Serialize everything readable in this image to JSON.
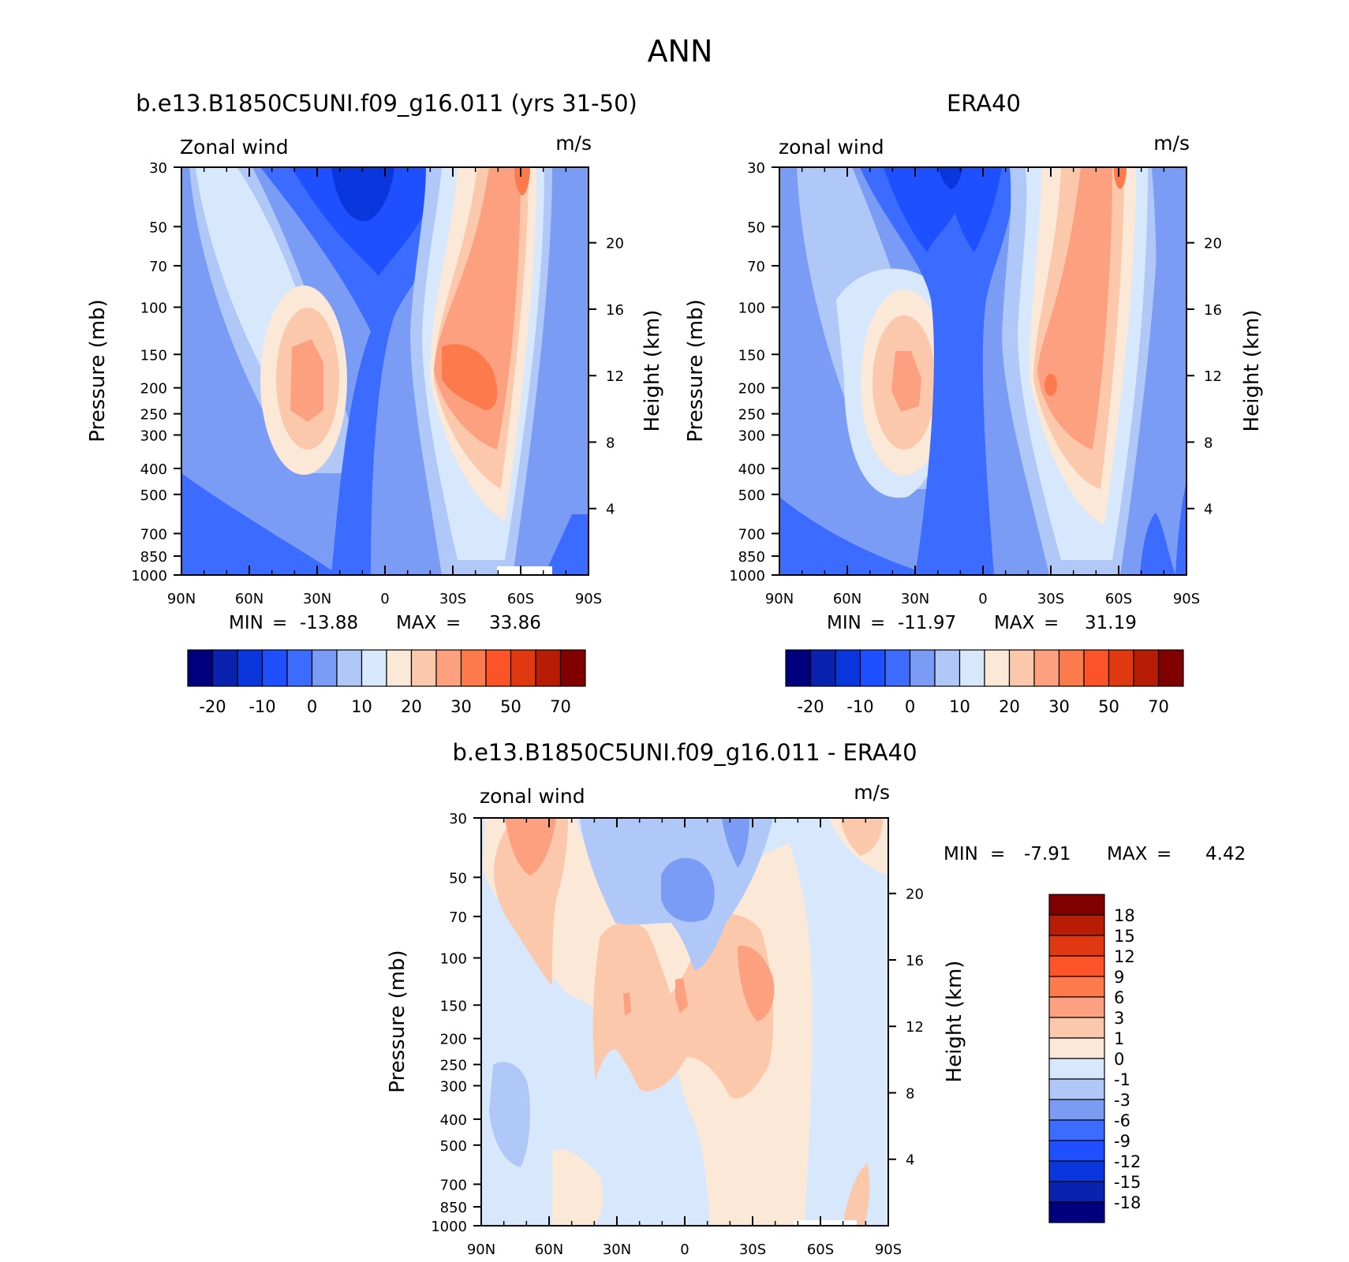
{
  "figure": {
    "title": "ANN",
    "panels": [
      {
        "title": "b.e13.B1850C5UNI.f09_g16.011 (yrs 31-50)",
        "left_label": "Zonal wind",
        "right_label": "m/s",
        "y_title": "Pressure (mb)",
        "y2_title": "Height (km)",
        "min_label": "MIN",
        "min_value": "-13.88",
        "max_label": "MAX",
        "max_value": "33.86"
      },
      {
        "title": "ERA40",
        "left_label": "zonal wind",
        "right_label": "m/s",
        "y_title": "Pressure (mb)",
        "y2_title": "Height (km)",
        "min_label": "MIN",
        "min_value": "-11.97",
        "max_label": "MAX",
        "max_value": "31.19"
      },
      {
        "title": "b.e13.B1850C5UNI.f09_g16.011 - ERA40",
        "left_label": "zonal wind",
        "right_label": "m/s",
        "y_title": "Pressure (mb)",
        "y2_title": "Height (km)",
        "min_label": "MIN",
        "min_value": "-7.91",
        "max_label": "MAX",
        "max_value": "4.42"
      }
    ]
  },
  "chart_data": [
    {
      "type": "heatmap",
      "subtype": "filled-contour latitude-pressure cross-section",
      "title": "b.e13.B1850C5UNI.f09_g16.011 (yrs 31-50)",
      "variable": "Zonal wind",
      "units": "m/s",
      "x_ticks": [
        "90N",
        "60N",
        "30N",
        "0",
        "30S",
        "60S",
        "90S"
      ],
      "y_ticks": [
        30,
        50,
        70,
        100,
        150,
        200,
        250,
        300,
        400,
        500,
        700,
        850,
        1000
      ],
      "y2_ticks": [
        20,
        16,
        12,
        8,
        4
      ],
      "y_scale": "log",
      "ylim": [
        1000,
        30
      ],
      "xlim": [
        90,
        -90
      ],
      "min": -13.88,
      "max": 33.86,
      "colorbar": {
        "orientation": "horizontal",
        "labels": [
          "-20",
          "-10",
          "0",
          "10",
          "20",
          "30",
          "50",
          "70"
        ],
        "colors": [
          "#00007f",
          "#0a22b0",
          "#0a36de",
          "#1e50ff",
          "#3c6cff",
          "#7a9cf5",
          "#b0c8f8",
          "#d8e8fc",
          "#fce8d6",
          "#fcc8ac",
          "#fca080",
          "#fc7a4c",
          "#fc5428",
          "#e03810",
          "#b81c04",
          "#800000"
        ]
      },
      "features": {
        "westerly_jet_NH_core_lat": 35,
        "westerly_jet_NH_core_p": 200,
        "westerly_jet_SH_core_lat": -45,
        "westerly_jet_SH_core_p": 200,
        "stratospheric_jet_SH_lat": -60,
        "tropical_easterlies_lat": 0
      }
    },
    {
      "type": "heatmap",
      "subtype": "filled-contour latitude-pressure cross-section",
      "title": "ERA40",
      "variable": "zonal wind",
      "units": "m/s",
      "x_ticks": [
        "90N",
        "60N",
        "30N",
        "0",
        "30S",
        "60S",
        "90S"
      ],
      "y_ticks": [
        30,
        50,
        70,
        100,
        150,
        200,
        250,
        300,
        400,
        500,
        700,
        850,
        1000
      ],
      "y2_ticks": [
        20,
        16,
        12,
        8,
        4
      ],
      "y_scale": "log",
      "ylim": [
        1000,
        30
      ],
      "xlim": [
        90,
        -90
      ],
      "min": -11.97,
      "max": 31.19,
      "colorbar": {
        "orientation": "horizontal",
        "labels": [
          "-20",
          "-10",
          "0",
          "10",
          "20",
          "30",
          "50",
          "70"
        ],
        "colors": [
          "#00007f",
          "#0a22b0",
          "#0a36de",
          "#1e50ff",
          "#3c6cff",
          "#7a9cf5",
          "#b0c8f8",
          "#d8e8fc",
          "#fce8d6",
          "#fcc8ac",
          "#fca080",
          "#fc7a4c",
          "#fc5428",
          "#e03810",
          "#b81c04",
          "#800000"
        ]
      }
    },
    {
      "type": "heatmap",
      "subtype": "filled-contour difference",
      "title": "b.e13.B1850C5UNI.f09_g16.011 - ERA40",
      "variable": "zonal wind",
      "units": "m/s",
      "x_ticks": [
        "90N",
        "60N",
        "30N",
        "0",
        "30S",
        "60S",
        "90S"
      ],
      "y_ticks": [
        30,
        50,
        70,
        100,
        150,
        200,
        250,
        300,
        400,
        500,
        700,
        850,
        1000
      ],
      "y2_ticks": [
        20,
        16,
        12,
        8,
        4
      ],
      "y_scale": "log",
      "ylim": [
        1000,
        30
      ],
      "xlim": [
        90,
        -90
      ],
      "min": -7.91,
      "max": 4.42,
      "colorbar": {
        "orientation": "vertical",
        "labels": [
          "18",
          "15",
          "12",
          "9",
          "6",
          "3",
          "1",
          "0",
          "-1",
          "-3",
          "-6",
          "-9",
          "-12",
          "-15",
          "-18"
        ],
        "colors": [
          "#800000",
          "#b81c04",
          "#e03810",
          "#fc5428",
          "#fc7a4c",
          "#fca080",
          "#fcc8ac",
          "#fce8d6",
          "#d8e8fc",
          "#b0c8f8",
          "#7a9cf5",
          "#3c6cff",
          "#1e50ff",
          "#0a36de",
          "#0a22b0",
          "#00007f"
        ]
      }
    }
  ]
}
